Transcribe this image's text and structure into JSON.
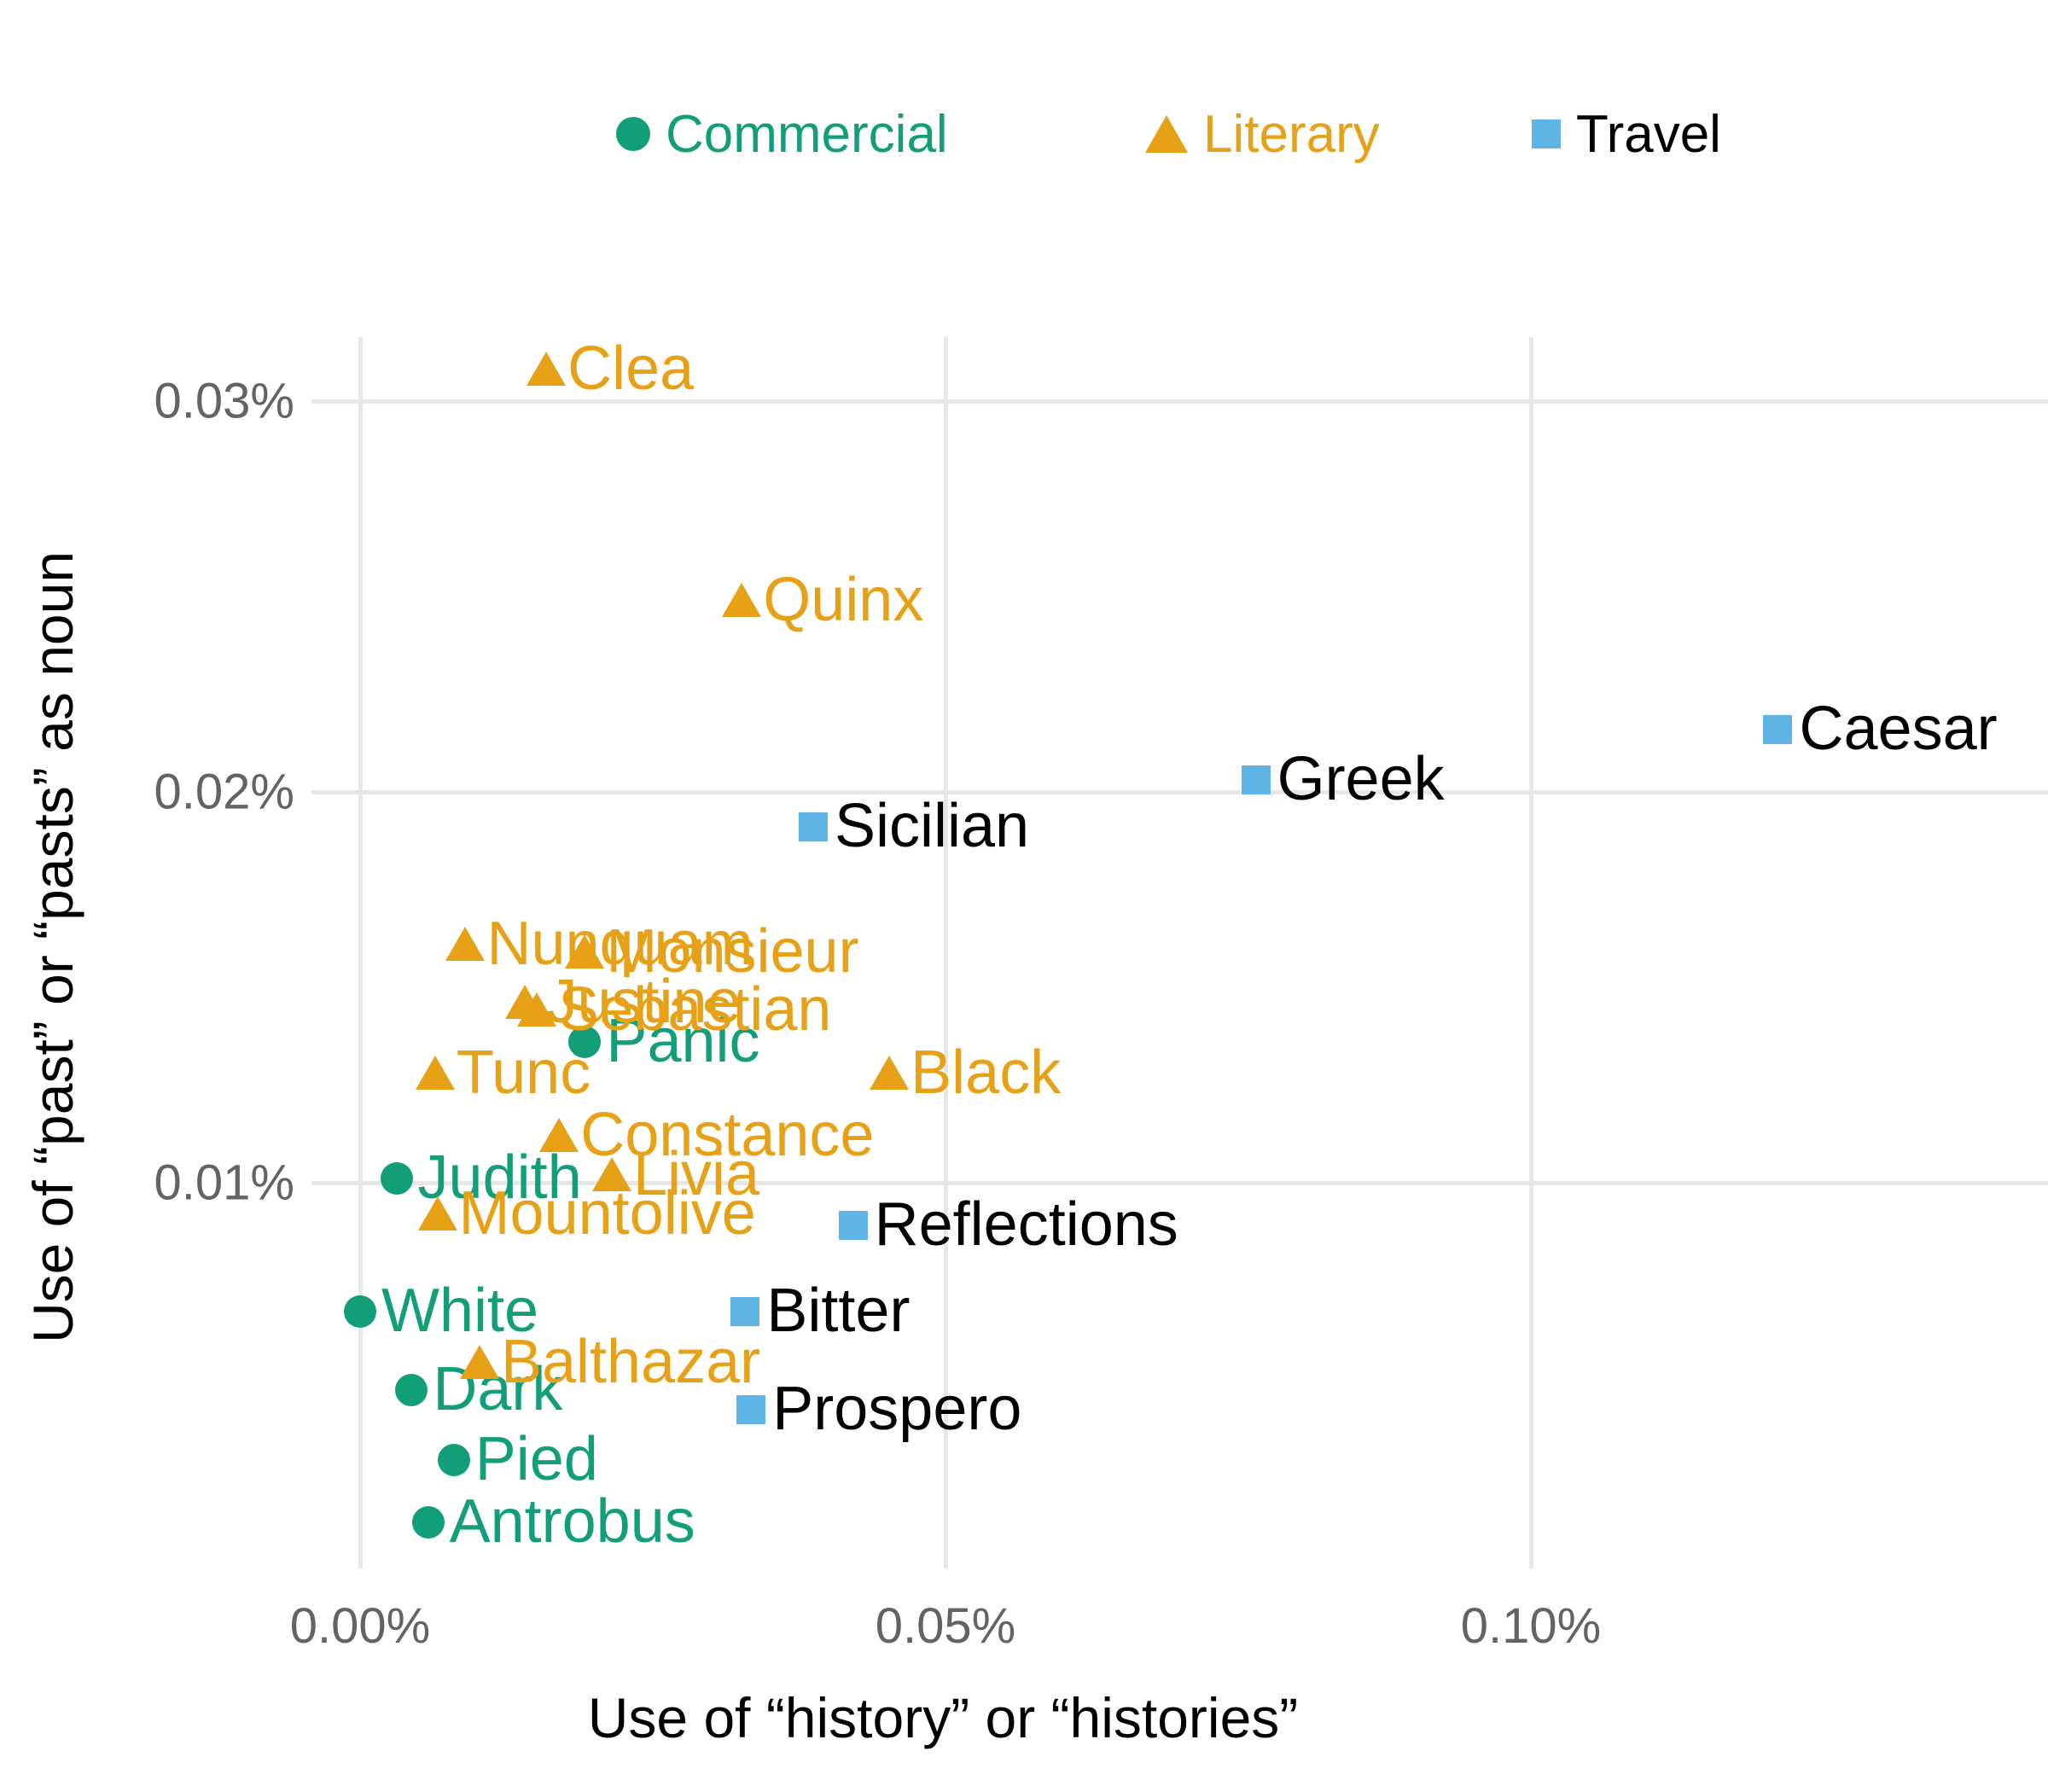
{
  "legend": {
    "items": [
      {
        "label": "Commercial",
        "marker": "circle",
        "color": "#119e78",
        "label_color": "#119e78"
      },
      {
        "label": "Literary",
        "marker": "triangle",
        "color": "#e6a117",
        "label_color": "#e6a117"
      },
      {
        "label": "Travel",
        "marker": "square",
        "color": "#5fb4e6",
        "label_color": "#000000"
      }
    ]
  },
  "axes": {
    "x": {
      "title": "Use of “history” or “histories”",
      "ticks": [
        {
          "label": "0.00%",
          "value": 0.0
        },
        {
          "label": "0.05%",
          "value": 0.05
        },
        {
          "label": "0.10%",
          "value": 0.1
        }
      ]
    },
    "y": {
      "title": "Use of “past” or “pasts” as noun",
      "ticks": [
        {
          "label": "0.01%",
          "value": 0.01
        },
        {
          "label": "0.02%",
          "value": 0.02
        },
        {
          "label": "0.03%",
          "value": 0.03
        }
      ]
    }
  },
  "chart_data": {
    "type": "scatter",
    "x_unit": "percent",
    "y_unit": "percent",
    "grid": true,
    "legend_position": "top",
    "xlim": [
      -0.002,
      0.1443
    ],
    "ylim": [
      0.0003,
      0.0313
    ],
    "series": [
      {
        "name": "Commercial",
        "marker": "circle",
        "color": "#119e78",
        "label_color": "#119e78",
        "points": [
          {
            "label": "Panic",
            "x": 0.0192,
            "y": 0.0136
          },
          {
            "label": "Judith",
            "x": 0.0031,
            "y": 0.0101
          },
          {
            "label": "White",
            "x": 0.0,
            "y": 0.0067
          },
          {
            "label": "Dark",
            "x": 0.0044,
            "y": 0.0047
          },
          {
            "label": "Pied",
            "x": 0.008,
            "y": 0.0029
          },
          {
            "label": "Antrobus",
            "x": 0.0058,
            "y": 0.0013
          }
        ]
      },
      {
        "name": "Literary",
        "marker": "triangle",
        "color": "#e6a117",
        "label_color": "#e6a117",
        "points": [
          {
            "label": "Clea",
            "x": 0.0159,
            "y": 0.0308
          },
          {
            "label": "Quinx",
            "x": 0.0326,
            "y": 0.0249
          },
          {
            "label": "Nunquam",
            "x": 0.009,
            "y": 0.0161
          },
          {
            "label": "Monsieur",
            "x": 0.0192,
            "y": 0.0159
          },
          {
            "label": "Justine",
            "x": 0.0141,
            "y": 0.0146
          },
          {
            "label": "Sebastian",
            "x": 0.0151,
            "y": 0.0144
          },
          {
            "label": "Tunc",
            "x": 0.0064,
            "y": 0.0128
          },
          {
            "label": "Black",
            "x": 0.0452,
            "y": 0.0128
          },
          {
            "label": "Constance",
            "x": 0.017,
            "y": 0.0112
          },
          {
            "label": "Livia",
            "x": 0.0215,
            "y": 0.0102
          },
          {
            "label": "Mountolive",
            "x": 0.0066,
            "y": 0.0092
          },
          {
            "label": "Balthazar",
            "x": 0.0102,
            "y": 0.0054
          }
        ]
      },
      {
        "name": "Travel",
        "marker": "square",
        "color": "#5fb4e6",
        "label_color": "#000000",
        "points": [
          {
            "label": "Caesar",
            "x": 0.1211,
            "y": 0.0216
          },
          {
            "label": "Greek",
            "x": 0.0765,
            "y": 0.0203
          },
          {
            "label": "Sicilian",
            "x": 0.0387,
            "y": 0.0191
          },
          {
            "label": "Reflections",
            "x": 0.0421,
            "y": 0.0089
          },
          {
            "label": "Bitter",
            "x": 0.0329,
            "y": 0.0067
          },
          {
            "label": "Prospero",
            "x": 0.0334,
            "y": 0.0042
          }
        ]
      }
    ]
  }
}
